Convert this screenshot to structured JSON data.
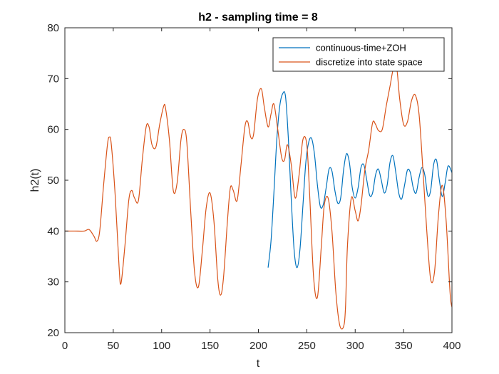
{
  "chart_data": {
    "type": "line",
    "title": "h2 - sampling time = 8",
    "xlabel": "t",
    "ylabel": "h2(t)",
    "xlim": [
      0,
      400
    ],
    "ylim": [
      20,
      80
    ],
    "xticks": [
      0,
      50,
      100,
      150,
      200,
      250,
      300,
      350,
      400
    ],
    "yticks": [
      20,
      30,
      40,
      50,
      60,
      70,
      80
    ],
    "grid": false,
    "legend_position": "top-right",
    "series": [
      {
        "name": "continuous-time+ZOH",
        "color": "#0072BD",
        "x": [
          210,
          213,
          216,
          219,
          222,
          225,
          228,
          231,
          234,
          237,
          240,
          243,
          246,
          249,
          252,
          255,
          258,
          261,
          264,
          267,
          270,
          273,
          276,
          279,
          282,
          285,
          288,
          291,
          294,
          297,
          300,
          303,
          306,
          309,
          312,
          315,
          318,
          321,
          324,
          327,
          330,
          333,
          336,
          339,
          342,
          345,
          348,
          351,
          354,
          357,
          360,
          363,
          366,
          369,
          372,
          375,
          378,
          381,
          384,
          387,
          390,
          393,
          396,
          400
        ],
        "y": [
          32.8,
          38.0,
          47.5,
          58.0,
          64.5,
          67.0,
          66.5,
          58.0,
          46.0,
          36.0,
          32.8,
          36.5,
          45.0,
          53.5,
          57.5,
          58.2,
          55.0,
          49.0,
          44.8,
          45.2,
          48.5,
          52.2,
          51.8,
          48.0,
          45.5,
          46.5,
          52.0,
          55.2,
          53.5,
          48.5,
          46.5,
          48.5,
          52.5,
          53.0,
          50.0,
          47.0,
          47.5,
          51.0,
          52.2,
          50.0,
          47.5,
          49.0,
          53.5,
          54.8,
          51.5,
          47.5,
          46.3,
          49.0,
          52.0,
          51.5,
          48.5,
          47.5,
          50.5,
          52.5,
          51.0,
          47.0,
          48.0,
          53.0,
          54.0,
          50.0,
          46.8,
          49.5,
          52.8,
          51.5
        ]
      },
      {
        "name": "discretize into state space",
        "color": "#D95319",
        "x": [
          0,
          10,
          20,
          25,
          30,
          33,
          36,
          40,
          44,
          46,
          48,
          52,
          56,
          58,
          62,
          66,
          69,
          72,
          76,
          80,
          84,
          87,
          90,
          94,
          98,
          102,
          104,
          108,
          112,
          116,
          120,
          123,
          126,
          130,
          134,
          138,
          142,
          146,
          150,
          154,
          158,
          161,
          164,
          168,
          171,
          174,
          178,
          182,
          186,
          189,
          192,
          195,
          199,
          203,
          206,
          210,
          213,
          216,
          220,
          224,
          227,
          230,
          234,
          238,
          242,
          246,
          250,
          253,
          257,
          261,
          265,
          268,
          272,
          276,
          280,
          284,
          288,
          290,
          292,
          296,
          300,
          303,
          306,
          310,
          314,
          318,
          321,
          324,
          328,
          332,
          336,
          340,
          343,
          346,
          350,
          354,
          358,
          362,
          366,
          370,
          374,
          378,
          382,
          386,
          390,
          394,
          398,
          400
        ],
        "y": [
          40.0,
          40.0,
          40.0,
          40.3,
          39.0,
          38.0,
          40.0,
          49.0,
          57.0,
          58.5,
          57.0,
          47.0,
          33.0,
          29.7,
          37.0,
          46.0,
          48.0,
          46.5,
          46.0,
          54.0,
          60.5,
          60.5,
          57.0,
          56.5,
          61.0,
          64.5,
          64.2,
          58.0,
          48.0,
          49.5,
          58.0,
          60.0,
          57.5,
          44.0,
          32.0,
          29.0,
          36.0,
          44.5,
          47.5,
          42.0,
          30.5,
          27.4,
          31.0,
          42.0,
          48.5,
          48.0,
          46.0,
          53.0,
          60.5,
          61.5,
          58.5,
          59.0,
          66.0,
          68.0,
          64.5,
          60.5,
          63.0,
          65.0,
          60.0,
          54.5,
          54.0,
          57.0,
          53.0,
          46.5,
          51.0,
          58.0,
          57.0,
          47.0,
          31.0,
          27.0,
          37.0,
          45.0,
          46.5,
          40.0,
          28.0,
          21.5,
          21.2,
          25.0,
          37.0,
          46.5,
          44.0,
          42.0,
          45.0,
          52.0,
          56.0,
          61.3,
          61.0,
          59.8,
          60.0,
          64.5,
          68.5,
          72.5,
          72.0,
          66.0,
          61.0,
          61.5,
          65.5,
          66.8,
          63.0,
          52.0,
          40.0,
          30.5,
          32.0,
          43.0,
          49.0,
          42.0,
          28.0,
          25.0
        ]
      }
    ]
  }
}
